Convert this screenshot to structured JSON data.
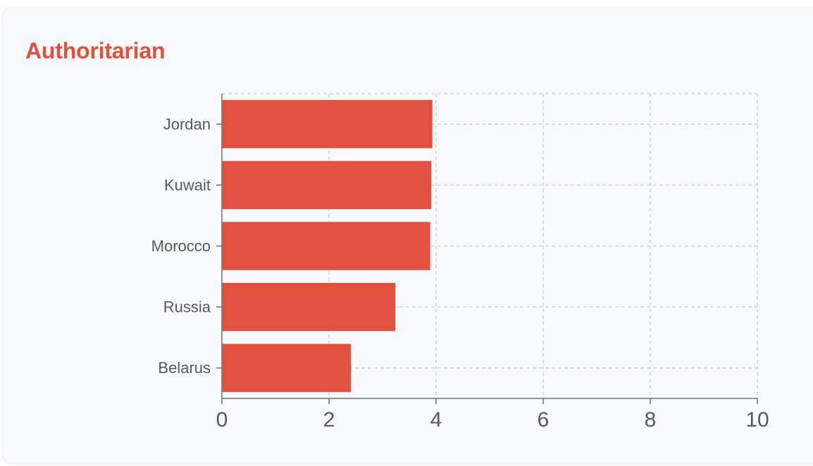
{
  "card": {
    "title": "Authoritarian"
  },
  "chart_data": {
    "type": "bar",
    "orientation": "horizontal",
    "title": "Authoritarian",
    "categories": [
      "Jordan",
      "Kuwait",
      "Morocco",
      "Russia",
      "Belarus"
    ],
    "values": [
      3.93,
      3.91,
      3.89,
      3.24,
      2.41
    ],
    "xlabel": "",
    "ylabel": "",
    "xlim": [
      0,
      10
    ],
    "xticks": [
      0,
      2,
      4,
      6,
      8,
      10
    ],
    "grid": true,
    "colors": {
      "bar": "#e05140",
      "grid": "#c9cdd2",
      "axis": "#6b6f75",
      "text": "#555a61"
    }
  }
}
